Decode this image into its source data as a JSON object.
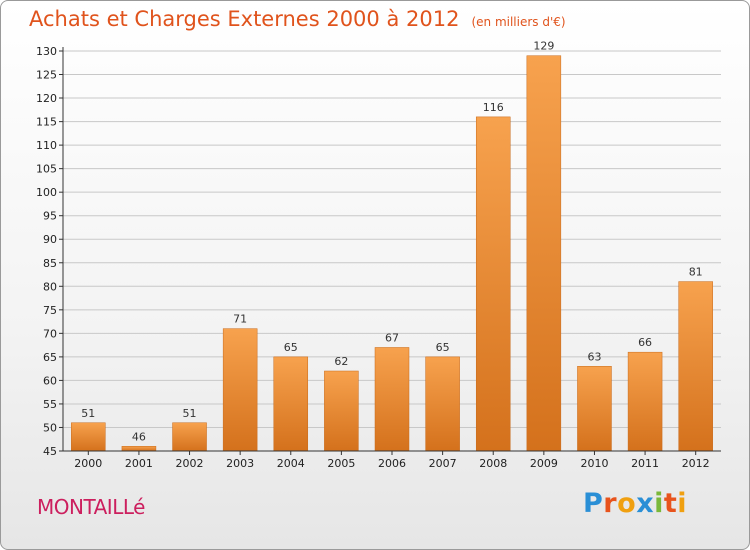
{
  "header": {
    "title": "Achats et Charges Externes 2000 à 2012",
    "subtitle": "(en milliers d'€)"
  },
  "footer": {
    "town": "MONTAILLé",
    "logo_text": "Proxiti"
  },
  "colors": {
    "title": "#e0531c",
    "town": "#cc1f5e",
    "bar_light": "#f7a24e",
    "bar_dark": "#d4711c",
    "grid": "#c8c8c8",
    "axis": "#333333",
    "logo": [
      "#2a8fd6",
      "#e8531c",
      "#f0a010",
      "#2a8fd6",
      "#7ab83a",
      "#e8531c",
      "#f0a010"
    ]
  },
  "chart_data": {
    "type": "bar",
    "categories": [
      "2000",
      "2001",
      "2002",
      "2003",
      "2004",
      "2005",
      "2006",
      "2007",
      "2008",
      "2009",
      "2010",
      "2011",
      "2012"
    ],
    "values": [
      51,
      46,
      51,
      71,
      65,
      62,
      67,
      65,
      116,
      129,
      63,
      66,
      81
    ],
    "title": "Achats et Charges Externes 2000 à 2012",
    "subtitle": "(en milliers d'€)",
    "xlabel": "",
    "ylabel": "",
    "ylim": [
      45,
      130
    ],
    "yticks": [
      45,
      50,
      55,
      60,
      65,
      70,
      75,
      80,
      85,
      90,
      95,
      100,
      105,
      110,
      115,
      120,
      125,
      130
    ],
    "grid": true,
    "data_labels": true
  }
}
